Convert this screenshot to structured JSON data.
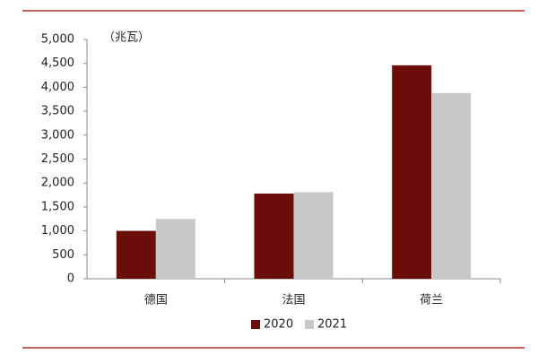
{
  "chart_data": {
    "type": "bar",
    "annotation": "（兆瓦）",
    "categories": [
      "德国",
      "法国",
      "荷兰"
    ],
    "series": [
      {
        "name": "2020",
        "color": "#6b0e0a",
        "values": [
          1000,
          1780,
          4460
        ]
      },
      {
        "name": "2021",
        "color": "#c8c8c8",
        "values": [
          1250,
          1810,
          3880
        ]
      }
    ],
    "ylim": [
      0,
      5000
    ],
    "yticks": [
      0,
      500,
      {
        "value": 1000,
        "label": "1,000"
      },
      {
        "value": 1500,
        "label": "1,500"
      },
      {
        "value": 2000,
        "label": "2,000"
      },
      {
        "value": 2500,
        "label": "2,500"
      },
      {
        "value": 3000,
        "label": "3,000"
      },
      {
        "value": 3500,
        "label": "3,500"
      },
      {
        "value": 4000,
        "label": "4,000"
      },
      {
        "value": 4500,
        "label": "4,500"
      },
      {
        "value": 5000,
        "label": "5,000"
      }
    ],
    "grid": false
  }
}
